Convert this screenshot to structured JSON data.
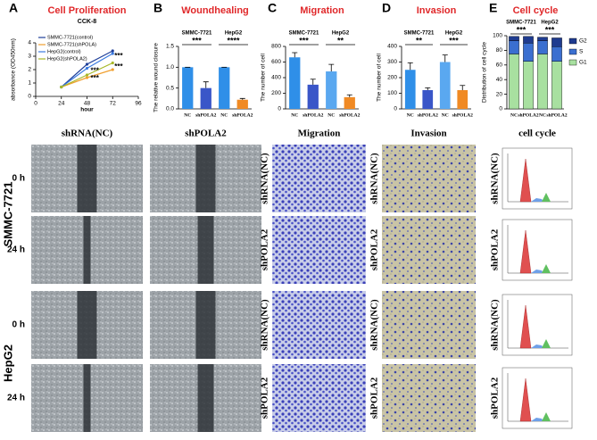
{
  "chart_data": [
    {
      "type": "line",
      "panel": "A",
      "title": "Cell Proliferation",
      "subtitle": "CCK-8",
      "x_label": "hour",
      "y_label": "absorbance (OD450nm)",
      "x": [
        24,
        48,
        72
      ],
      "xlim": [
        0,
        96
      ],
      "xticks": [
        0,
        24,
        48,
        72,
        96
      ],
      "ylim": [
        0,
        4
      ],
      "yticks": [
        0,
        1,
        2,
        3,
        4
      ],
      "series": [
        {
          "name": "SMMC-7721(control)",
          "color": "#1f3f99",
          "values": [
            0.7,
            2.4,
            3.4
          ]
        },
        {
          "name": "SMMC-7721(shPOLA)",
          "color": "#f0a030",
          "values": [
            0.7,
            1.4,
            2.0
          ]
        },
        {
          "name": "HepG2(control)",
          "color": "#3b7be0",
          "values": [
            0.7,
            2.1,
            3.2
          ]
        },
        {
          "name": "HepG2(shPOLA2)",
          "color": "#a8b828",
          "values": [
            0.7,
            1.6,
            2.5
          ]
        }
      ],
      "annotations": [
        "***",
        "***",
        "***",
        "***"
      ]
    },
    {
      "type": "bar",
      "panel": "B",
      "title": "Woundhealing",
      "y_label": "The relative wound closure",
      "categories": [
        "NC",
        "shPOLA2",
        "NC",
        "shPOLA2"
      ],
      "values": [
        1.0,
        0.5,
        1.0,
        0.22
      ],
      "errors": [
        0,
        0.15,
        0,
        0.03
      ],
      "colors": [
        "#2f8fe8",
        "#3a56c8",
        "#2f8fe8",
        "#f08a24"
      ],
      "ylim": [
        0,
        1.5
      ],
      "yticks": [
        {
          "value": 0,
          "label": "0.0"
        },
        {
          "value": 0.5,
          "label": "0.5"
        },
        {
          "value": 1,
          "label": "1.0"
        },
        {
          "value": 1.5,
          "label": "1.5"
        }
      ],
      "group_labels": [
        "SMMC-7721",
        "HepG2"
      ],
      "significance": [
        "***",
        "****"
      ]
    },
    {
      "type": "bar",
      "panel": "C",
      "title": "Migration",
      "y_label": "The number of cell",
      "categories": [
        "NC",
        "shPOLA2",
        "NC",
        "shPOLA2"
      ],
      "values": [
        660,
        310,
        480,
        150
      ],
      "errors": [
        60,
        70,
        90,
        30
      ],
      "colors": [
        "#2f8fe8",
        "#3a56c8",
        "#5aa8f0",
        "#f08a24"
      ],
      "ylim": [
        0,
        800
      ],
      "yticks": [
        0,
        200,
        400,
        600,
        800
      ],
      "group_labels": [
        "SMMC-7721",
        "HepG2"
      ],
      "significance": [
        "***",
        "**"
      ]
    },
    {
      "type": "bar",
      "panel": "D",
      "title": "Invasion",
      "y_label": "The number of cell",
      "categories": [
        "NC",
        "shPOLA2",
        "NC",
        "shPOLA2"
      ],
      "values": [
        250,
        120,
        300,
        120
      ],
      "errors": [
        45,
        15,
        45,
        30
      ],
      "colors": [
        "#2f8fe8",
        "#3a56c8",
        "#5aa8f0",
        "#f08a24"
      ],
      "ylim": [
        0,
        400
      ],
      "yticks": [
        0,
        100,
        200,
        300,
        400
      ],
      "group_labels": [
        "SMMC-7721",
        "HepG2"
      ],
      "significance": [
        "**",
        "***"
      ]
    },
    {
      "type": "stacked_bar",
      "panel": "E",
      "title": "Cell cycle",
      "y_label": "Distribution of cell cycle",
      "categories": [
        "NC",
        "shPOLA2",
        "NC",
        "shPOLA2"
      ],
      "ylim": [
        0,
        100
      ],
      "yticks": [
        0,
        20,
        40,
        60,
        80,
        100
      ],
      "series": [
        {
          "name": "G1",
          "color": "#a8e0a0",
          "values": [
            75,
            65,
            75,
            65
          ]
        },
        {
          "name": "S",
          "color": "#3b6fd0",
          "values": [
            18,
            25,
            18,
            20
          ]
        },
        {
          "name": "G2",
          "color": "#1f3b8f",
          "values": [
            6,
            9,
            5,
            12
          ]
        }
      ],
      "group_labels": [
        "SMMC-7721",
        "HepG2"
      ],
      "significance": [
        "***",
        "***"
      ]
    }
  ],
  "images": {
    "wound": {
      "columns": [
        "shRNA(NC)",
        "shPOLA2"
      ],
      "cell_lines": [
        "SMMC-7721",
        "HepG2"
      ],
      "times": [
        "0 h",
        "24 h"
      ]
    },
    "migration": {
      "title": "Migration",
      "rows": [
        "shRNA(NC)",
        "shPOLA2",
        "shRNA(NC)",
        "shPOLA2"
      ]
    },
    "invasion": {
      "title": "Invasion",
      "rows": [
        "shRNA(NC)",
        "shPOLA2",
        "shRNA(NC)",
        "shPOLA2"
      ]
    },
    "cell_cycle": {
      "title": "cell cycle",
      "rows": [
        "shRNA(NC)",
        "shPOLA2",
        "shRNA(NC)",
        "shPOLA2"
      ]
    }
  }
}
